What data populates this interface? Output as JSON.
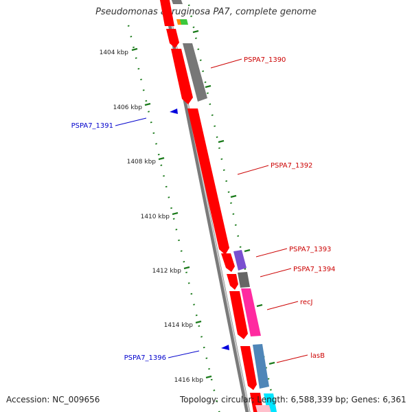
{
  "title": "Pseudomonas aeruginosa PA7, complete genome",
  "accession_text": "Accession: NC_009656",
  "topology_text": "Topology: circular; Length: 6,588,339 bp; Genes: 6,361",
  "colors": {
    "backbone": "#888888",
    "tick": "#1a7a1a",
    "forward_label": "#cc0000",
    "reverse_label": "#0000cc",
    "cds_red": "#ff0000",
    "cds_gray": "#777777",
    "cds_purple": "#7a50d0",
    "cds_magenta": "#ff2aa0",
    "cds_steelblue": "#4f86b8"
  },
  "scale": {
    "unit": "kbp",
    "tick_labels": [
      "1404 kbp",
      "1406 kbp",
      "1408 kbp",
      "1410 kbp",
      "1412 kbp",
      "1414 kbp",
      "1416 kbp"
    ]
  },
  "gene_labels": [
    {
      "text": "PSPA7_1390",
      "strand": "forward"
    },
    {
      "text": "PSPA7_1391",
      "strand": "reverse"
    },
    {
      "text": "PSPA7_1392",
      "strand": "forward"
    },
    {
      "text": "PSPA7_1393",
      "strand": "forward"
    },
    {
      "text": "PSPA7_1394",
      "strand": "forward"
    },
    {
      "text": "recJ",
      "strand": "forward"
    },
    {
      "text": "PSPA7_1396",
      "strand": "reverse"
    },
    {
      "text": "lasB",
      "strand": "forward"
    }
  ]
}
